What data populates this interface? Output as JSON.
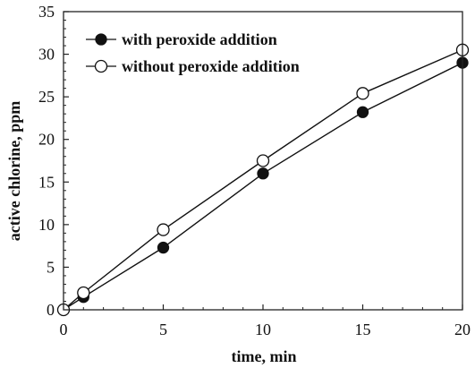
{
  "chart_data": {
    "type": "line",
    "title": "",
    "xlabel": "time, min",
    "ylabel": "active chlorine, ppm",
    "xlim": [
      0,
      20
    ],
    "ylim": [
      0,
      35
    ],
    "xticks": [
      "0",
      "5",
      "10",
      "15",
      "20"
    ],
    "yticks": [
      "0",
      "5",
      "10",
      "15",
      "20",
      "25",
      "30",
      "35"
    ],
    "grid": false,
    "legend": "top-left",
    "series": [
      {
        "name": "with peroxide addition",
        "marker": "filled-circle",
        "color": "#111111",
        "x": [
          0,
          1,
          5,
          10,
          15,
          20
        ],
        "y": [
          0,
          1.5,
          7.3,
          16.0,
          23.2,
          29.0
        ]
      },
      {
        "name": "without peroxide addition",
        "marker": "open-circle",
        "color": "#111111",
        "x": [
          0,
          1,
          5,
          10,
          15,
          20
        ],
        "y": [
          0,
          2.0,
          9.4,
          17.5,
          25.4,
          30.5
        ]
      }
    ]
  }
}
